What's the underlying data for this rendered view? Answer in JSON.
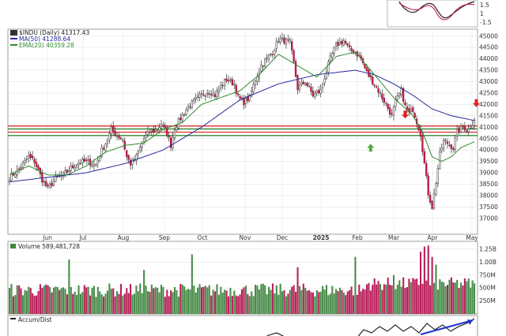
{
  "chart_data": {
    "type": "candlestick",
    "legend": {
      "symbol": "$INDU (Daily) 41317.43",
      "ma": "MA(50) 41288.64",
      "ema": "EMA(20) 40359.28"
    },
    "x_tick_labels": [
      "Jun",
      "Jul",
      "Aug",
      "Sep",
      "Oct",
      "Nov",
      "Dec",
      "2025",
      "Feb",
      "Mar",
      "Apr",
      "May"
    ],
    "price_axis": {
      "ylim": [
        36300,
        45300
      ],
      "ticks": [
        37000,
        37500,
        38000,
        38500,
        39000,
        39500,
        40000,
        40500,
        41000,
        41500,
        42000,
        42500,
        43000,
        43500,
        44000,
        44500,
        45000
      ]
    },
    "levels": {
      "resistance": [
        41050,
        40780
      ],
      "support": [
        40920,
        40630
      ]
    },
    "arrows": [
      {
        "type": "down",
        "color": "#e02020",
        "index": 243,
        "value": 41950
      },
      {
        "type": "down",
        "color": "#e02020",
        "index": 206,
        "value": 41450
      },
      {
        "type": "up",
        "color": "#55aa44",
        "index": 188,
        "value": 40200
      }
    ],
    "price_waypoints": [
      [
        0,
        38800
      ],
      [
        5,
        39150
      ],
      [
        10,
        39700
      ],
      [
        13,
        39500
      ],
      [
        17,
        38700
      ],
      [
        20,
        38300
      ],
      [
        24,
        38750
      ],
      [
        28,
        38900
      ],
      [
        32,
        39200
      ],
      [
        36,
        39450
      ],
      [
        40,
        39500
      ],
      [
        45,
        39350
      ],
      [
        48,
        40000
      ],
      [
        51,
        40450
      ],
      [
        53,
        40900
      ],
      [
        56,
        40650
      ],
      [
        59,
        40450
      ],
      [
        61,
        39700
      ],
      [
        63,
        39400
      ],
      [
        66,
        39700
      ],
      [
        70,
        40500
      ],
      [
        73,
        40800
      ],
      [
        77,
        40900
      ],
      [
        79,
        41150
      ],
      [
        82,
        40750
      ],
      [
        84,
        40200
      ],
      [
        86,
        40950
      ],
      [
        89,
        41400
      ],
      [
        93,
        41900
      ],
      [
        97,
        42200
      ],
      [
        101,
        42450
      ],
      [
        104,
        42600
      ],
      [
        107,
        42400
      ],
      [
        110,
        42800
      ],
      [
        113,
        43100
      ],
      [
        117,
        42900
      ],
      [
        119,
        42300
      ],
      [
        122,
        42100
      ],
      [
        125,
        42300
      ],
      [
        128,
        43100
      ],
      [
        131,
        43700
      ],
      [
        134,
        44000
      ],
      [
        137,
        44300
      ],
      [
        140,
        44850
      ],
      [
        143,
        44800
      ],
      [
        146,
        44700
      ],
      [
        148,
        43800
      ],
      [
        150,
        42700
      ],
      [
        154,
        43000
      ],
      [
        158,
        42400
      ],
      [
        162,
        42600
      ],
      [
        164,
        43200
      ],
      [
        167,
        44000
      ],
      [
        170,
        44600
      ],
      [
        174,
        44800
      ],
      [
        177,
        44400
      ],
      [
        180,
        44300
      ],
      [
        183,
        44000
      ],
      [
        186,
        43400
      ],
      [
        189,
        43000
      ],
      [
        192,
        42600
      ],
      [
        196,
        42000
      ],
      [
        199,
        41500
      ],
      [
        201,
        42100
      ],
      [
        204,
        42600
      ],
      [
        206,
        41900
      ],
      [
        208,
        41600
      ],
      [
        210,
        41800
      ],
      [
        214,
        40700
      ],
      [
        216,
        39400
      ],
      [
        218,
        38100
      ],
      [
        220,
        37500
      ],
      [
        222,
        38600
      ],
      [
        224,
        39800
      ],
      [
        226,
        40400
      ],
      [
        228,
        40300
      ],
      [
        231,
        40100
      ],
      [
        233,
        40800
      ],
      [
        236,
        41000
      ],
      [
        239,
        40900
      ],
      [
        242,
        41317
      ]
    ],
    "ma50_waypoints": [
      [
        0,
        38600
      ],
      [
        20,
        38800
      ],
      [
        40,
        39000
      ],
      [
        60,
        39400
      ],
      [
        80,
        40000
      ],
      [
        100,
        41000
      ],
      [
        120,
        42200
      ],
      [
        140,
        42900
      ],
      [
        160,
        43300
      ],
      [
        180,
        43500
      ],
      [
        190,
        43300
      ],
      [
        200,
        42900
      ],
      [
        210,
        42400
      ],
      [
        220,
        41800
      ],
      [
        230,
        41500
      ],
      [
        242,
        41289
      ]
    ],
    "ema20_waypoints": [
      [
        0,
        38900
      ],
      [
        10,
        39300
      ],
      [
        20,
        38900
      ],
      [
        30,
        38900
      ],
      [
        40,
        39300
      ],
      [
        50,
        39900
      ],
      [
        60,
        40200
      ],
      [
        70,
        40300
      ],
      [
        80,
        40900
      ],
      [
        90,
        41200
      ],
      [
        100,
        42000
      ],
      [
        110,
        42300
      ],
      [
        120,
        42600
      ],
      [
        130,
        43300
      ],
      [
        140,
        44200
      ],
      [
        150,
        43700
      ],
      [
        160,
        43200
      ],
      [
        170,
        44100
      ],
      [
        180,
        44300
      ],
      [
        190,
        43300
      ],
      [
        200,
        42300
      ],
      [
        210,
        41500
      ],
      [
        215,
        40800
      ],
      [
        220,
        39700
      ],
      [
        225,
        39500
      ],
      [
        230,
        39700
      ],
      [
        235,
        40100
      ],
      [
        242,
        40359
      ]
    ],
    "volume_panel": {
      "label": "Volume 589,481,728",
      "ticks": [
        "250M",
        "500M",
        "750M",
        "1.00B",
        "1.25B"
      ],
      "ylim": [
        0,
        1400000000
      ]
    },
    "accum_panel": {
      "label": "Accum/Dist"
    },
    "inset": {
      "ticks": [
        "1.5",
        "1",
        "-1.5"
      ]
    }
  }
}
